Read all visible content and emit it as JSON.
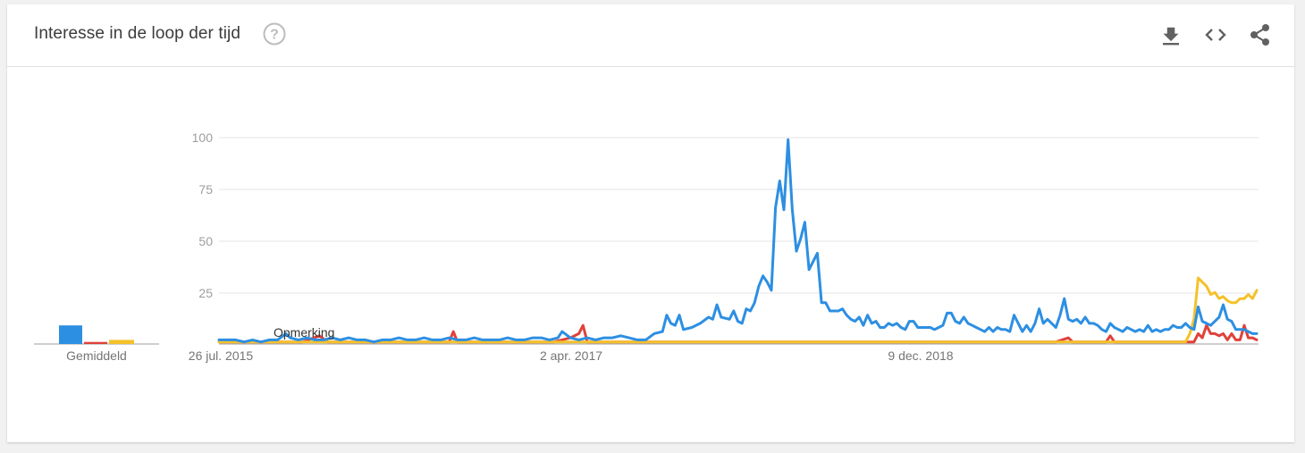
{
  "header": {
    "title": "Interesse in de loop der tijd",
    "help_icon": "help-circle-icon",
    "actions": [
      {
        "name": "download-button",
        "icon": "download-icon"
      },
      {
        "name": "embed-button",
        "icon": "code-icon"
      },
      {
        "name": "share-button",
        "icon": "share-icon"
      }
    ]
  },
  "colors": {
    "blue": "#2d8fe2",
    "red": "#e0413a",
    "yellow": "#f4c12b",
    "grid": "#e6e6e6",
    "axis": "#9e9e9e"
  },
  "chart_data": {
    "type": "line",
    "title": "Interesse in de loop der tijd",
    "ylim": [
      0,
      100
    ],
    "y_ticks": [
      "25",
      "50",
      "75",
      "100"
    ],
    "x_tick_labels": [
      "26 jul. 2015",
      "2 apr. 2017",
      "9 dec. 2018"
    ],
    "annotation": "Opmerking",
    "average_label": "Gemiddeld",
    "averages": [
      {
        "color": "#2d8fe2",
        "value": 9
      },
      {
        "color": "#e0413a",
        "value": 1
      },
      {
        "color": "#f4c12b",
        "value": 2
      }
    ],
    "grid": true,
    "series": [
      {
        "color": "#2d8fe2",
        "points": [
          [
            0,
            2
          ],
          [
            2,
            2
          ],
          [
            4,
            2
          ],
          [
            6,
            1
          ],
          [
            8,
            2
          ],
          [
            10,
            1
          ],
          [
            12,
            2
          ],
          [
            14,
            2
          ],
          [
            16,
            5
          ],
          [
            17,
            3
          ],
          [
            19,
            2
          ],
          [
            21,
            3
          ],
          [
            23,
            2
          ],
          [
            25,
            2
          ],
          [
            27,
            3
          ],
          [
            29,
            2
          ],
          [
            31,
            3
          ],
          [
            33,
            2
          ],
          [
            35,
            2
          ],
          [
            37,
            1
          ],
          [
            39,
            2
          ],
          [
            41,
            2
          ],
          [
            43,
            3
          ],
          [
            45,
            2
          ],
          [
            47,
            2
          ],
          [
            49,
            3
          ],
          [
            51,
            2
          ],
          [
            53,
            2
          ],
          [
            55,
            3
          ],
          [
            57,
            2
          ],
          [
            59,
            2
          ],
          [
            61,
            3
          ],
          [
            63,
            2
          ],
          [
            65,
            2
          ],
          [
            67,
            2
          ],
          [
            69,
            3
          ],
          [
            71,
            2
          ],
          [
            73,
            2
          ],
          [
            75,
            3
          ],
          [
            77,
            3
          ],
          [
            79,
            2
          ],
          [
            81,
            3
          ],
          [
            82,
            6
          ],
          [
            84,
            3
          ],
          [
            86,
            2
          ],
          [
            88,
            3
          ],
          [
            90,
            2
          ],
          [
            92,
            3
          ],
          [
            94,
            3
          ],
          [
            96,
            4
          ],
          [
            98,
            3
          ],
          [
            100,
            2
          ],
          [
            102,
            2
          ],
          [
            104,
            5
          ],
          [
            106,
            6
          ],
          [
            107,
            14
          ],
          [
            108,
            10
          ],
          [
            109,
            9
          ],
          [
            110,
            14
          ],
          [
            111,
            7
          ],
          [
            113,
            8
          ],
          [
            115,
            10
          ],
          [
            117,
            13
          ],
          [
            118,
            12
          ],
          [
            119,
            19
          ],
          [
            120,
            13
          ],
          [
            122,
            12
          ],
          [
            123,
            16
          ],
          [
            124,
            11
          ],
          [
            125,
            10
          ],
          [
            126,
            17
          ],
          [
            127,
            16
          ],
          [
            128,
            20
          ],
          [
            129,
            28
          ],
          [
            130,
            33
          ],
          [
            131,
            30
          ],
          [
            132,
            26
          ],
          [
            133,
            66
          ],
          [
            134,
            79
          ],
          [
            135,
            65
          ],
          [
            136,
            99
          ],
          [
            137,
            65
          ],
          [
            138,
            45
          ],
          [
            139,
            51
          ],
          [
            140,
            59
          ],
          [
            141,
            36
          ],
          [
            142,
            40
          ],
          [
            143,
            44
          ],
          [
            144,
            20
          ],
          [
            145,
            20
          ],
          [
            146,
            16
          ],
          [
            148,
            16
          ],
          [
            149,
            17
          ],
          [
            150,
            14
          ],
          [
            151,
            12
          ],
          [
            152,
            11
          ],
          [
            153,
            13
          ],
          [
            154,
            9
          ],
          [
            155,
            14
          ],
          [
            156,
            10
          ],
          [
            157,
            11
          ],
          [
            158,
            8
          ],
          [
            159,
            8
          ],
          [
            160,
            10
          ],
          [
            161,
            9
          ],
          [
            162,
            10
          ],
          [
            163,
            8
          ],
          [
            164,
            7
          ],
          [
            165,
            11
          ],
          [
            166,
            11
          ],
          [
            167,
            8
          ],
          [
            168,
            8
          ],
          [
            170,
            8
          ],
          [
            171,
            7
          ],
          [
            172,
            8
          ],
          [
            173,
            9
          ],
          [
            174,
            15
          ],
          [
            175,
            15
          ],
          [
            176,
            11
          ],
          [
            177,
            10
          ],
          [
            178,
            13
          ],
          [
            179,
            10
          ],
          [
            180,
            9
          ],
          [
            181,
            8
          ],
          [
            182,
            7
          ],
          [
            183,
            6
          ],
          [
            184,
            8
          ],
          [
            185,
            6
          ],
          [
            186,
            8
          ],
          [
            187,
            7
          ],
          [
            188,
            7
          ],
          [
            189,
            6
          ],
          [
            190,
            14
          ],
          [
            191,
            10
          ],
          [
            192,
            6
          ],
          [
            193,
            9
          ],
          [
            194,
            6
          ],
          [
            195,
            10
          ],
          [
            196,
            17
          ],
          [
            197,
            10
          ],
          [
            198,
            12
          ],
          [
            199,
            10
          ],
          [
            200,
            8
          ],
          [
            201,
            14
          ],
          [
            202,
            22
          ],
          [
            203,
            12
          ],
          [
            204,
            11
          ],
          [
            205,
            12
          ],
          [
            206,
            10
          ],
          [
            207,
            13
          ],
          [
            208,
            10
          ],
          [
            209,
            10
          ],
          [
            210,
            9
          ],
          [
            211,
            7
          ],
          [
            212,
            6
          ],
          [
            213,
            10
          ],
          [
            214,
            8
          ],
          [
            215,
            7
          ],
          [
            216,
            6
          ],
          [
            217,
            8
          ],
          [
            218,
            7
          ],
          [
            219,
            6
          ],
          [
            220,
            7
          ],
          [
            221,
            6
          ],
          [
            222,
            9
          ],
          [
            223,
            6
          ],
          [
            224,
            7
          ],
          [
            225,
            6
          ],
          [
            226,
            7
          ],
          [
            227,
            7
          ],
          [
            228,
            9
          ],
          [
            229,
            8
          ],
          [
            230,
            8
          ],
          [
            231,
            10
          ],
          [
            232,
            8
          ],
          [
            233,
            7
          ],
          [
            234,
            18
          ],
          [
            235,
            11
          ],
          [
            236,
            10
          ],
          [
            237,
            9
          ],
          [
            238,
            11
          ],
          [
            239,
            13
          ],
          [
            240,
            19
          ],
          [
            241,
            12
          ],
          [
            242,
            11
          ],
          [
            243,
            7
          ],
          [
            244,
            7
          ],
          [
            245,
            7
          ],
          [
            246,
            6
          ],
          [
            247,
            5
          ],
          [
            248,
            5
          ]
        ]
      },
      {
        "color": "#e0413a",
        "points": [
          [
            0,
            1
          ],
          [
            10,
            1
          ],
          [
            20,
            1
          ],
          [
            24,
            4
          ],
          [
            26,
            1
          ],
          [
            40,
            1
          ],
          [
            50,
            1
          ],
          [
            55,
            1
          ],
          [
            56,
            6
          ],
          [
            57,
            1
          ],
          [
            60,
            1
          ],
          [
            70,
            1
          ],
          [
            75,
            1
          ],
          [
            80,
            1
          ],
          [
            84,
            3
          ],
          [
            86,
            5
          ],
          [
            87,
            9
          ],
          [
            88,
            1
          ],
          [
            100,
            1
          ],
          [
            110,
            1
          ],
          [
            130,
            1
          ],
          [
            150,
            1
          ],
          [
            170,
            1
          ],
          [
            180,
            1
          ],
          [
            190,
            1
          ],
          [
            200,
            1
          ],
          [
            203,
            3
          ],
          [
            204,
            1
          ],
          [
            212,
            1
          ],
          [
            213,
            4
          ],
          [
            214,
            1
          ],
          [
            220,
            1
          ],
          [
            230,
            1
          ],
          [
            233,
            1
          ],
          [
            234,
            5
          ],
          [
            235,
            3
          ],
          [
            236,
            9
          ],
          [
            237,
            5
          ],
          [
            238,
            5
          ],
          [
            239,
            4
          ],
          [
            240,
            5
          ],
          [
            241,
            2
          ],
          [
            242,
            5
          ],
          [
            243,
            2
          ],
          [
            244,
            2
          ],
          [
            245,
            9
          ],
          [
            246,
            3
          ],
          [
            247,
            3
          ],
          [
            248,
            2
          ]
        ]
      },
      {
        "color": "#f4c12b",
        "points": [
          [
            0,
            1
          ],
          [
            50,
            1
          ],
          [
            100,
            1
          ],
          [
            150,
            1
          ],
          [
            200,
            1
          ],
          [
            231,
            1
          ],
          [
            232,
            5
          ],
          [
            233,
            12
          ],
          [
            234,
            32
          ],
          [
            235,
            30
          ],
          [
            236,
            28
          ],
          [
            237,
            24
          ],
          [
            238,
            25
          ],
          [
            239,
            22
          ],
          [
            240,
            23
          ],
          [
            241,
            21
          ],
          [
            242,
            20
          ],
          [
            243,
            20
          ],
          [
            244,
            22
          ],
          [
            245,
            22
          ],
          [
            246,
            24
          ],
          [
            247,
            22
          ],
          [
            248,
            26
          ]
        ]
      }
    ]
  }
}
